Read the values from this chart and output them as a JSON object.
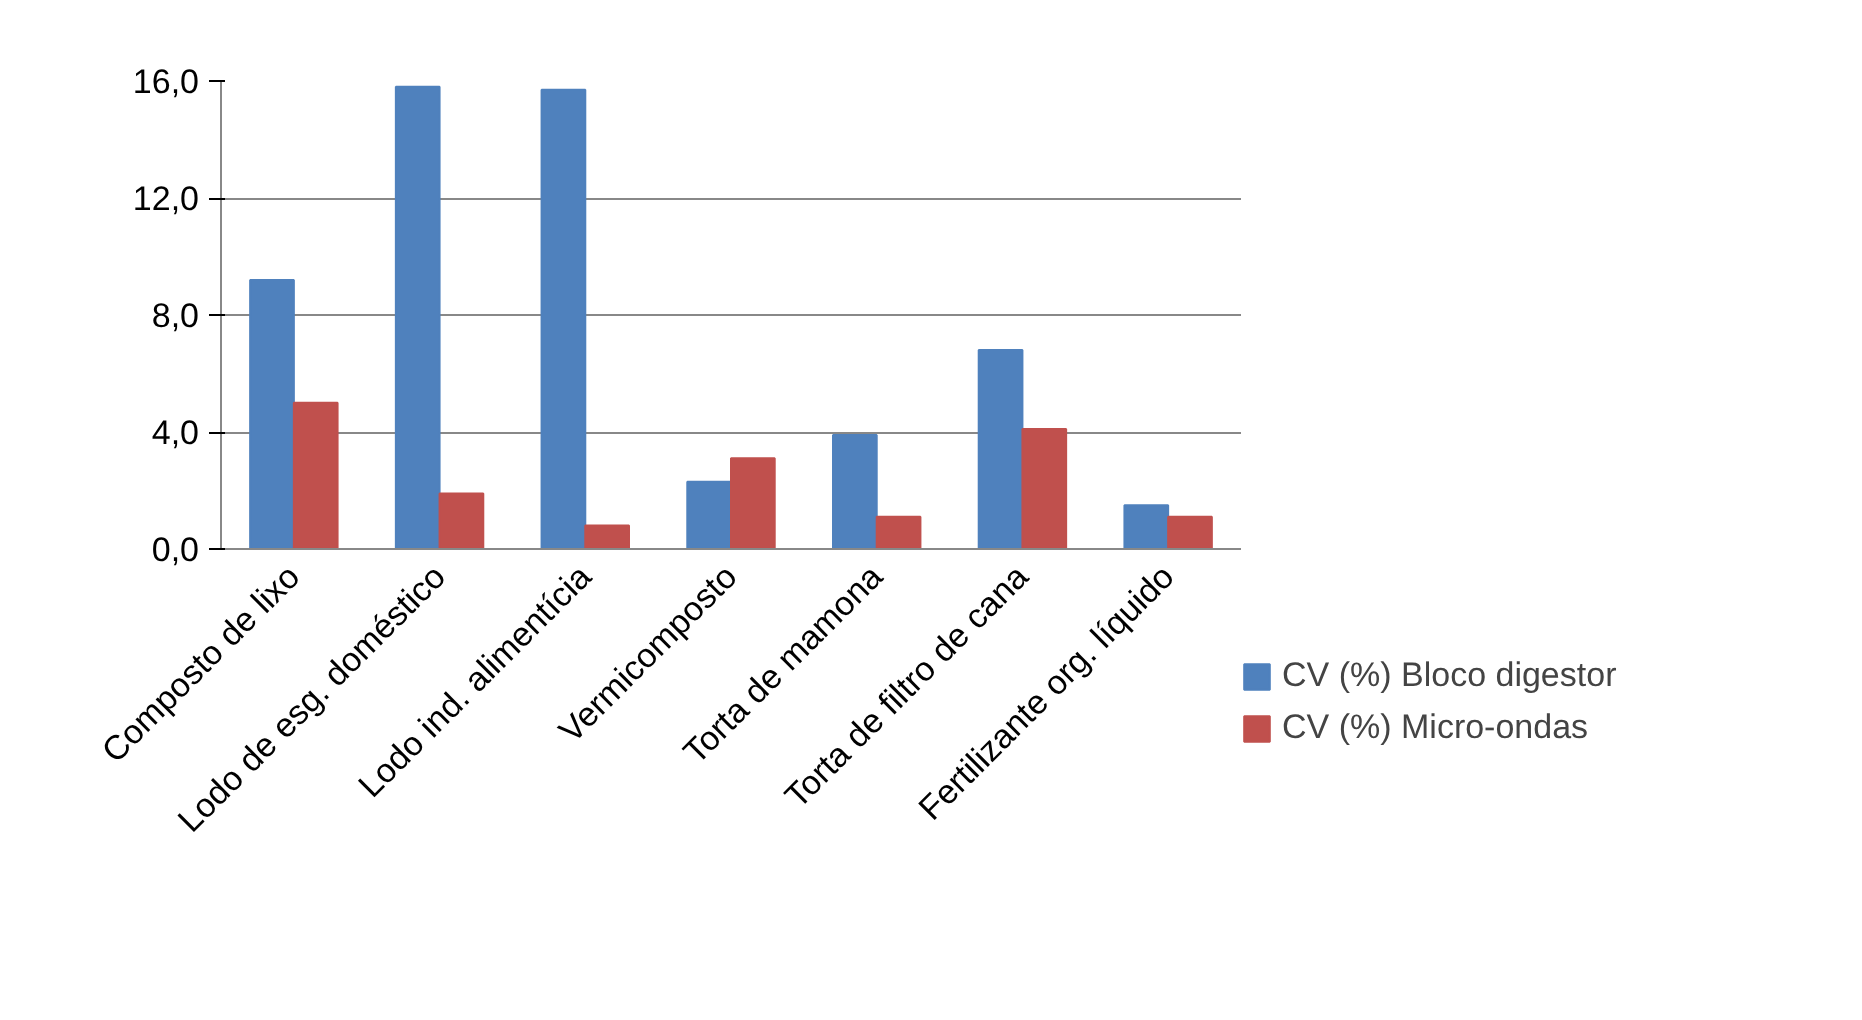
{
  "chart_data": {
    "type": "bar",
    "categories": [
      "Composto de lixo",
      "Lodo de esg. doméstico",
      "Lodo ind. alimentícia",
      "Vermicomposto",
      "Torta de mamona",
      "Torta de filtro de cana",
      "Fertilizante org. líquido"
    ],
    "series": [
      {
        "name": "CV (%) Bloco digestor",
        "color": "#4f81bd",
        "values": [
          9.2,
          15.8,
          15.7,
          2.3,
          3.9,
          6.8,
          1.5
        ]
      },
      {
        "name": "CV (%) Micro-ondas",
        "color": "#c0504d",
        "values": [
          5.0,
          1.9,
          0.8,
          3.1,
          1.1,
          4.1,
          1.1
        ]
      }
    ],
    "ylim": [
      0,
      16
    ],
    "yticks": [
      {
        "value": 0,
        "label": "0,0"
      },
      {
        "value": 4,
        "label": "4,0"
      },
      {
        "value": 8,
        "label": "8,0"
      },
      {
        "value": 12,
        "label": "12,0"
      },
      {
        "value": 16,
        "label": "16,0"
      }
    ],
    "grid": "y",
    "legend": "right"
  }
}
